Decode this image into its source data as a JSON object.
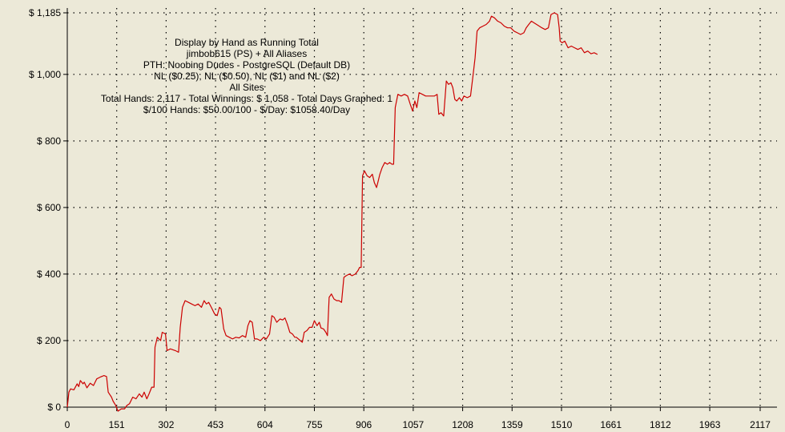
{
  "chart_data": {
    "type": "line",
    "title": "Display by Hand as Running Total",
    "subtitle_lines": [
      "jimbob615 (PS) + All Aliases",
      "PTH: Noobing Dudes - PostgreSQL (Default DB)",
      "NL ($0.25), NL ($0.50), NL ($1) and NL ($2)",
      "All Sites",
      "Total Hands: 2,117 - Total Winnings: $ 1,058 - Total Days Graphed: 1",
      "$/100 Hands: $50.00/100 - $/Day: $1058.40/Day"
    ],
    "xlabel": "",
    "ylabel": "",
    "xlim": [
      0,
      2117
    ],
    "ylim": [
      0,
      1185
    ],
    "x_ticks": [
      0,
      151,
      302,
      453,
      604,
      755,
      906,
      1057,
      1208,
      1359,
      1510,
      1661,
      1812,
      1963,
      2117
    ],
    "y_ticks": [
      {
        "value": 0,
        "label": "$ 0"
      },
      {
        "value": 200,
        "label": "$ 200"
      },
      {
        "value": 400,
        "label": "$ 400"
      },
      {
        "value": 600,
        "label": "$ 600"
      },
      {
        "value": 800,
        "label": "$ 800"
      },
      {
        "value": 1000,
        "label": "$ 1,000"
      },
      {
        "value": 1185,
        "label": "$ 1,185"
      }
    ],
    "grid": true,
    "line_color": "#cc0000",
    "series": [
      {
        "name": "",
        "points": [
          [
            0,
            0
          ],
          [
            5,
            45
          ],
          [
            10,
            55
          ],
          [
            20,
            52
          ],
          [
            30,
            70
          ],
          [
            35,
            62
          ],
          [
            40,
            80
          ],
          [
            48,
            70
          ],
          [
            52,
            75
          ],
          [
            60,
            58
          ],
          [
            70,
            72
          ],
          [
            80,
            65
          ],
          [
            90,
            85
          ],
          [
            100,
            90
          ],
          [
            112,
            95
          ],
          [
            120,
            92
          ],
          [
            125,
            45
          ],
          [
            135,
            30
          ],
          [
            140,
            18
          ],
          [
            148,
            5
          ],
          [
            155,
            -12
          ],
          [
            165,
            -5
          ],
          [
            175,
            -5
          ],
          [
            182,
            5
          ],
          [
            190,
            10
          ],
          [
            200,
            30
          ],
          [
            210,
            25
          ],
          [
            220,
            40
          ],
          [
            228,
            30
          ],
          [
            235,
            45
          ],
          [
            243,
            25
          ],
          [
            250,
            40
          ],
          [
            258,
            60
          ],
          [
            265,
            60
          ],
          [
            268,
            180
          ],
          [
            275,
            210
          ],
          [
            285,
            200
          ],
          [
            290,
            225
          ],
          [
            300,
            220
          ],
          [
            305,
            170
          ],
          [
            315,
            175
          ],
          [
            330,
            170
          ],
          [
            340,
            165
          ],
          [
            345,
            240
          ],
          [
            352,
            300
          ],
          [
            360,
            320
          ],
          [
            370,
            315
          ],
          [
            380,
            310
          ],
          [
            390,
            305
          ],
          [
            400,
            310
          ],
          [
            410,
            300
          ],
          [
            418,
            320
          ],
          [
            425,
            310
          ],
          [
            432,
            315
          ],
          [
            440,
            300
          ],
          [
            450,
            280
          ],
          [
            458,
            275
          ],
          [
            465,
            300
          ],
          [
            470,
            295
          ],
          [
            478,
            235
          ],
          [
            485,
            215
          ],
          [
            495,
            210
          ],
          [
            505,
            205
          ],
          [
            515,
            210
          ],
          [
            525,
            208
          ],
          [
            535,
            215
          ],
          [
            545,
            210
          ],
          [
            552,
            245
          ],
          [
            558,
            260
          ],
          [
            565,
            255
          ],
          [
            572,
            205
          ],
          [
            580,
            205
          ],
          [
            590,
            200
          ],
          [
            600,
            210
          ],
          [
            608,
            205
          ],
          [
            618,
            220
          ],
          [
            625,
            275
          ],
          [
            632,
            270
          ],
          [
            640,
            255
          ],
          [
            650,
            265
          ],
          [
            658,
            262
          ],
          [
            665,
            268
          ],
          [
            672,
            250
          ],
          [
            680,
            225
          ],
          [
            688,
            220
          ],
          [
            695,
            210
          ],
          [
            700,
            210
          ],
          [
            712,
            200
          ],
          [
            718,
            195
          ],
          [
            724,
            225
          ],
          [
            732,
            230
          ],
          [
            740,
            240
          ],
          [
            748,
            240
          ],
          [
            755,
            260
          ],
          [
            763,
            245
          ],
          [
            770,
            255
          ],
          [
            775,
            238
          ],
          [
            783,
            235
          ],
          [
            790,
            225
          ],
          [
            795,
            215
          ],
          [
            800,
            330
          ],
          [
            807,
            340
          ],
          [
            815,
            325
          ],
          [
            823,
            320
          ],
          [
            830,
            320
          ],
          [
            838,
            315
          ],
          [
            845,
            390
          ],
          [
            852,
            395
          ],
          [
            862,
            400
          ],
          [
            870,
            395
          ],
          [
            880,
            400
          ],
          [
            888,
            410
          ],
          [
            893,
            420
          ],
          [
            898,
            420
          ],
          [
            902,
            695
          ],
          [
            908,
            710
          ],
          [
            916,
            695
          ],
          [
            924,
            690
          ],
          [
            932,
            700
          ],
          [
            938,
            675
          ],
          [
            945,
            660
          ],
          [
            950,
            680
          ],
          [
            955,
            700
          ],
          [
            962,
            720
          ],
          [
            970,
            735
          ],
          [
            978,
            730
          ],
          [
            985,
            735
          ],
          [
            992,
            730
          ],
          [
            997,
            730
          ],
          [
            1002,
            900
          ],
          [
            1010,
            940
          ],
          [
            1020,
            935
          ],
          [
            1030,
            940
          ],
          [
            1040,
            935
          ],
          [
            1048,
            910
          ],
          [
            1055,
            890
          ],
          [
            1062,
            920
          ],
          [
            1068,
            900
          ],
          [
            1075,
            945
          ],
          [
            1085,
            940
          ],
          [
            1095,
            935
          ],
          [
            1105,
            935
          ],
          [
            1112,
            935
          ],
          [
            1122,
            935
          ],
          [
            1130,
            940
          ],
          [
            1135,
            880
          ],
          [
            1142,
            885
          ],
          [
            1150,
            875
          ],
          [
            1158,
            980
          ],
          [
            1165,
            970
          ],
          [
            1172,
            975
          ],
          [
            1178,
            960
          ],
          [
            1184,
            925
          ],
          [
            1190,
            920
          ],
          [
            1198,
            930
          ],
          [
            1205,
            920
          ],
          [
            1212,
            935
          ],
          [
            1222,
            930
          ],
          [
            1232,
            935
          ],
          [
            1240,
            1000
          ],
          [
            1246,
            1050
          ],
          [
            1252,
            1130
          ],
          [
            1260,
            1140
          ],
          [
            1270,
            1145
          ],
          [
            1280,
            1150
          ],
          [
            1290,
            1160
          ],
          [
            1296,
            1175
          ],
          [
            1305,
            1170
          ],
          [
            1315,
            1160
          ],
          [
            1325,
            1155
          ],
          [
            1335,
            1145
          ],
          [
            1345,
            1140
          ],
          [
            1355,
            1140
          ],
          [
            1365,
            1130
          ],
          [
            1375,
            1125
          ],
          [
            1385,
            1120
          ],
          [
            1395,
            1125
          ],
          [
            1402,
            1140
          ],
          [
            1410,
            1150
          ],
          [
            1418,
            1160
          ],
          [
            1426,
            1155
          ],
          [
            1434,
            1150
          ],
          [
            1442,
            1145
          ],
          [
            1450,
            1140
          ],
          [
            1460,
            1135
          ],
          [
            1470,
            1140
          ],
          [
            1478,
            1180
          ],
          [
            1488,
            1185
          ],
          [
            1498,
            1180
          ],
          [
            1503,
            1140
          ],
          [
            1506,
            1100
          ],
          [
            1512,
            1095
          ],
          [
            1520,
            1100
          ],
          [
            1530,
            1080
          ],
          [
            1540,
            1085
          ],
          [
            1550,
            1080
          ],
          [
            1560,
            1075
          ],
          [
            1570,
            1080
          ],
          [
            1580,
            1065
          ],
          [
            1590,
            1070
          ],
          [
            1600,
            1062
          ],
          [
            1610,
            1065
          ],
          [
            1620,
            1060
          ]
        ]
      }
    ]
  }
}
